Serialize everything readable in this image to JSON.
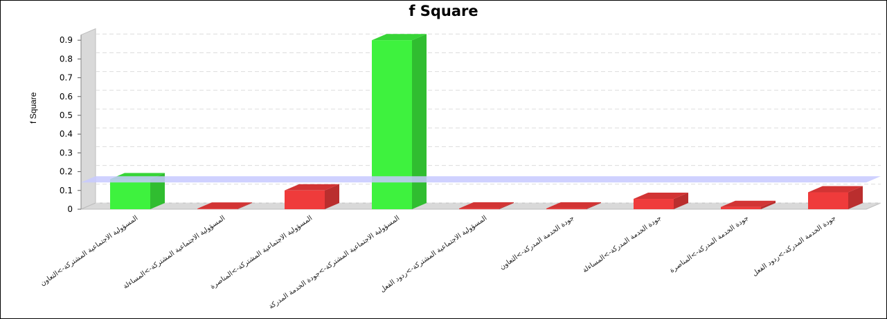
{
  "chart_data": {
    "type": "bar",
    "title": "f Square",
    "xlabel": "",
    "ylabel": "f Square",
    "ylim": [
      0,
      0.95
    ],
    "yticks": [
      "0",
      "0.1",
      "0.2",
      "0.3",
      "0.4",
      "0.5",
      "0.6",
      "0.7",
      "0.8",
      "0.9"
    ],
    "grid": true,
    "threshold": 0.15,
    "categories": [
      "المسؤولية الاجتماعية المشتركة->التعاون",
      "المسؤولية الاجتماعية المشتركة->المساءلة",
      "المسؤولية الاجتماعية المشتركة->المناصرة",
      "المسؤولية الاجتماعية المشتركة->جودة الخدمة المدركة",
      "المسؤولية الاجتماعية المشتركة->ردود الفعل",
      "جودة الخدمة المدركة->التعاون",
      "جودة الخدمة المدركة->المساءلة",
      "جودة الخدمة المدركة->المناصرة",
      "جودة الخدمة المدركة->ردود الفعل"
    ],
    "values": [
      0.16,
      0.003,
      0.1,
      0.9,
      0.004,
      0.004,
      0.055,
      0.012,
      0.09
    ],
    "colors": {
      "above_threshold": "#3ef23e",
      "below_threshold": "#ef3b3b",
      "threshold_band": "#c7c9ff",
      "wall": "#d9d9d9",
      "grid": "#dcdcdc"
    }
  }
}
